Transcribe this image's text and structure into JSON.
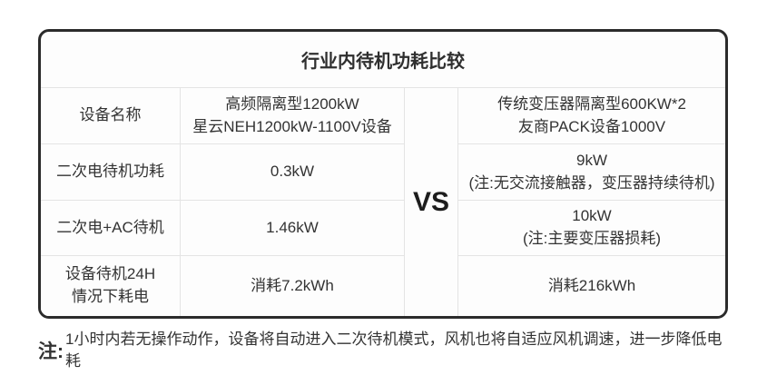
{
  "chart_data": {
    "type": "table",
    "title": "行业内待机功耗比较",
    "vs_label": "VS",
    "rows": [
      {
        "label": "设备名称",
        "left": "高频隔离型1200kW\n星云NEH1200kW-1100V设备",
        "right": "传统变压器隔离型600KW*2\n友商PACK设备1000V"
      },
      {
        "label": "二次电待机功耗",
        "left": "0.3kW",
        "right": "9kW\n(注:无交流接触器，变压器持续待机)"
      },
      {
        "label": "二次电+AC待机",
        "left": "1.46kW",
        "right": "10kW\n(注:主要变压器损耗)"
      },
      {
        "label": "设备待机24H\n情况下耗电",
        "left": "消耗7.2kWh",
        "right": "消耗216kWh"
      }
    ]
  },
  "note": {
    "prefix": "注:",
    "text": "1小时内若无操作动作，设备将自动进入二次待机模式，风机也将自适应风机调速，进一步降低电耗"
  },
  "colors": {
    "outer_border": "#2b2b2b",
    "divider": "#e4e4e4",
    "text": "#333333",
    "card_background": "#fdfdfd"
  }
}
